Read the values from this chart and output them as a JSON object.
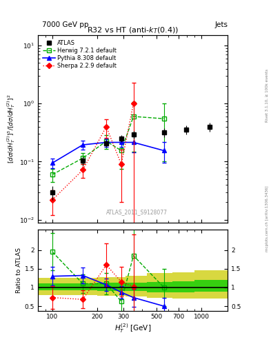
{
  "title": "R32 vs HT (anti-k_{T}(0.4))",
  "top_left_label": "7000 GeV pp",
  "top_right_label": "Jets",
  "xlabel": "H_{T}^{(2)} [GeV]",
  "ylabel_main": "[do/dH_{T}^{(2)}]^{3} / [do/dH_{T}^{(2)}]^{2}",
  "ylabel_ratio": "Ratio to ATLAS",
  "watermark": "ATLAS_2011_S9128077",
  "side_text_top": "Rivet 3.1.10, ≥ 100k events",
  "side_text_bot": "mcplots.cern.ch [arXiv:1306.3436]",
  "atlas_x": [
    100,
    160,
    230,
    290,
    350,
    560,
    790,
    1130
  ],
  "atlas_y": [
    0.03,
    0.105,
    0.205,
    0.25,
    0.295,
    0.32,
    0.355,
    0.4
  ],
  "atlas_yerr": [
    0.008,
    0.018,
    0.025,
    0.035,
    0.045,
    0.055,
    0.06,
    0.07
  ],
  "herwig_x": [
    100,
    160,
    230,
    290,
    350,
    560
  ],
  "herwig_y": [
    0.06,
    0.115,
    0.225,
    0.155,
    0.6,
    0.55
  ],
  "herwig_yerr": [
    0.015,
    0.025,
    0.06,
    0.08,
    0.45,
    0.45
  ],
  "pythia_x": [
    100,
    160,
    230,
    290,
    350,
    560
  ],
  "pythia_y": [
    0.095,
    0.195,
    0.215,
    0.215,
    0.215,
    0.155
  ],
  "pythia_yerr": [
    0.018,
    0.035,
    0.035,
    0.035,
    0.07,
    0.06
  ],
  "sherpa_x": [
    100,
    160,
    230,
    290,
    350,
    560
  ],
  "sherpa_y": [
    0.022,
    0.072,
    0.4,
    0.09,
    1.0,
    0.0
  ],
  "sherpa_yerr": [
    0.01,
    0.02,
    0.14,
    0.07,
    1.3,
    0.0
  ],
  "herwig_ratio": [
    1.95,
    1.1,
    1.1,
    0.625,
    1.85,
    1.0
  ],
  "herwig_ratio_err": [
    0.5,
    0.24,
    0.28,
    0.32,
    1.5,
    0.5
  ],
  "pythia_ratio": [
    1.3,
    1.32,
    1.07,
    0.87,
    0.73,
    0.5
  ],
  "pythia_ratio_err": [
    0.25,
    0.22,
    0.17,
    0.17,
    0.24,
    0.22
  ],
  "sherpa_ratio": [
    0.73,
    0.68,
    1.6,
    1.15,
    1.02,
    0.0
  ],
  "sherpa_ratio_err": [
    0.3,
    0.24,
    0.58,
    0.4,
    1.4,
    0.0
  ],
  "band_edges": [
    80,
    200,
    310,
    430,
    640,
    900,
    1500
  ],
  "band_green_lo": [
    0.93,
    0.91,
    0.9,
    0.87,
    0.87,
    0.88
  ],
  "band_green_hi": [
    1.1,
    1.12,
    1.13,
    1.15,
    1.16,
    1.2
  ],
  "band_yellow_lo": [
    0.8,
    0.78,
    0.76,
    0.72,
    0.7,
    0.7
  ],
  "band_yellow_hi": [
    1.25,
    1.28,
    1.32,
    1.38,
    1.4,
    1.45
  ],
  "atlas_color": "#000000",
  "herwig_color": "#00aa00",
  "pythia_color": "#0000ff",
  "sherpa_color": "#ff0000",
  "band_green": "#00cc00",
  "band_yellow": "#cccc00",
  "xlim": [
    80,
    1500
  ],
  "ylim_main": [
    0.009,
    15.0
  ],
  "ylim_ratio": [
    0.38,
    2.55
  ],
  "fig_width": 3.93,
  "fig_height": 5.12,
  "dpi": 100
}
